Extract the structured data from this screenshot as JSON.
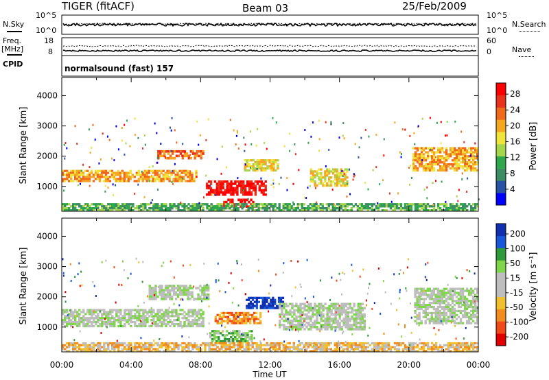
{
  "header": {
    "radar": "TIGER (fitACF)",
    "beam": "Beam 03",
    "date": "25/Feb/2009"
  },
  "strip_sky": {
    "label_left": "N.Sky",
    "label_right": "N.Search",
    "ticks_left": [
      "10^5",
      "10^0"
    ],
    "ticks_right": [
      "10^5",
      "10^0"
    ]
  },
  "strip_freq": {
    "label_left_1": "Freq.",
    "label_left_2": "[MHz]",
    "label_right": "Nave",
    "ticks_left": [
      "18",
      "8"
    ],
    "ticks_right": [
      "60",
      "0"
    ]
  },
  "cpid": {
    "label": "CPID",
    "value": "normalsound (fast) 157"
  },
  "colors": {
    "power_scale": [
      "#0000ff",
      "#2a52a4",
      "#3c8c64",
      "#2fa84d",
      "#a6d64e",
      "#f0e33c",
      "#f5a623",
      "#f06a1e",
      "#e8321e",
      "#ff0000"
    ],
    "velocity_scale": [
      "#1030b0",
      "#1858d8",
      "#2f9a3a",
      "#7fd64a",
      "#bebebe",
      "#bebebe",
      "#f0c030",
      "#f08c20",
      "#f04a1a",
      "#e00000"
    ]
  },
  "chart_data": [
    {
      "type": "heatmap",
      "name": "power",
      "ylabel": "Slant Range [km]",
      "yticks": [
        "1000",
        "2000",
        "3000",
        "4000"
      ],
      "ylim": [
        180,
        4600
      ],
      "xlim": [
        0,
        24
      ],
      "colorbar_label": "Power [dB]",
      "colorbar_ticks": [
        "4",
        "8",
        "12",
        "16",
        "20",
        "24",
        "28"
      ],
      "regions": [
        {
          "t0": 0.0,
          "t1": 7.8,
          "r0": 1150,
          "r1": 1550,
          "level": 6
        },
        {
          "t0": 5.5,
          "t1": 8.2,
          "r0": 1900,
          "r1": 2200,
          "level": 7
        },
        {
          "t0": 8.3,
          "t1": 11.8,
          "r0": 700,
          "r1": 1200,
          "level": 9
        },
        {
          "t0": 9.3,
          "t1": 11.2,
          "r0": 300,
          "r1": 600,
          "level": 9
        },
        {
          "t0": 10.5,
          "t1": 12.5,
          "r0": 1500,
          "r1": 1900,
          "level": 5
        },
        {
          "t0": 14.3,
          "t1": 16.5,
          "r0": 1000,
          "r1": 1600,
          "level": 5
        },
        {
          "t0": 20.2,
          "t1": 24.0,
          "r0": 1500,
          "r1": 2300,
          "level": 6
        },
        {
          "t0": 0.0,
          "t1": 24.0,
          "r0": 180,
          "r1": 450,
          "level": 3
        }
      ]
    },
    {
      "type": "heatmap",
      "name": "velocity",
      "ylabel": "Slant Range [km]",
      "yticks": [
        "1000",
        "2000",
        "3000",
        "4000"
      ],
      "ylim": [
        180,
        4600
      ],
      "xlim": [
        0,
        24
      ],
      "colorbar_label": "Velocity [m s⁻¹]",
      "colorbar_ticks": [
        "200",
        "100",
        "50",
        "15",
        "-15",
        "-50",
        "-100",
        "-200"
      ],
      "regions": [
        {
          "t0": 0.0,
          "t1": 8.2,
          "r0": 1000,
          "r1": 1600,
          "level": 4
        },
        {
          "t0": 5.0,
          "t1": 8.5,
          "r0": 1900,
          "r1": 2400,
          "level": 4
        },
        {
          "t0": 8.8,
          "t1": 11.5,
          "r0": 1100,
          "r1": 1500,
          "level": 7
        },
        {
          "t0": 10.6,
          "t1": 12.8,
          "r0": 1600,
          "r1": 2000,
          "level": 0
        },
        {
          "t0": 8.5,
          "t1": 11.0,
          "r0": 500,
          "r1": 900,
          "level": 3
        },
        {
          "t0": 12.5,
          "t1": 17.5,
          "r0": 900,
          "r1": 1800,
          "level": 4
        },
        {
          "t0": 20.3,
          "t1": 24.0,
          "r0": 1100,
          "r1": 2300,
          "level": 4
        },
        {
          "t0": 0.0,
          "t1": 24.0,
          "r0": 180,
          "r1": 500,
          "level": 6
        }
      ]
    }
  ],
  "xaxis": {
    "label": "Time UT",
    "ticks": [
      "00:00",
      "04:00",
      "08:00",
      "12:00",
      "16:00",
      "20:00",
      "00:00"
    ]
  }
}
